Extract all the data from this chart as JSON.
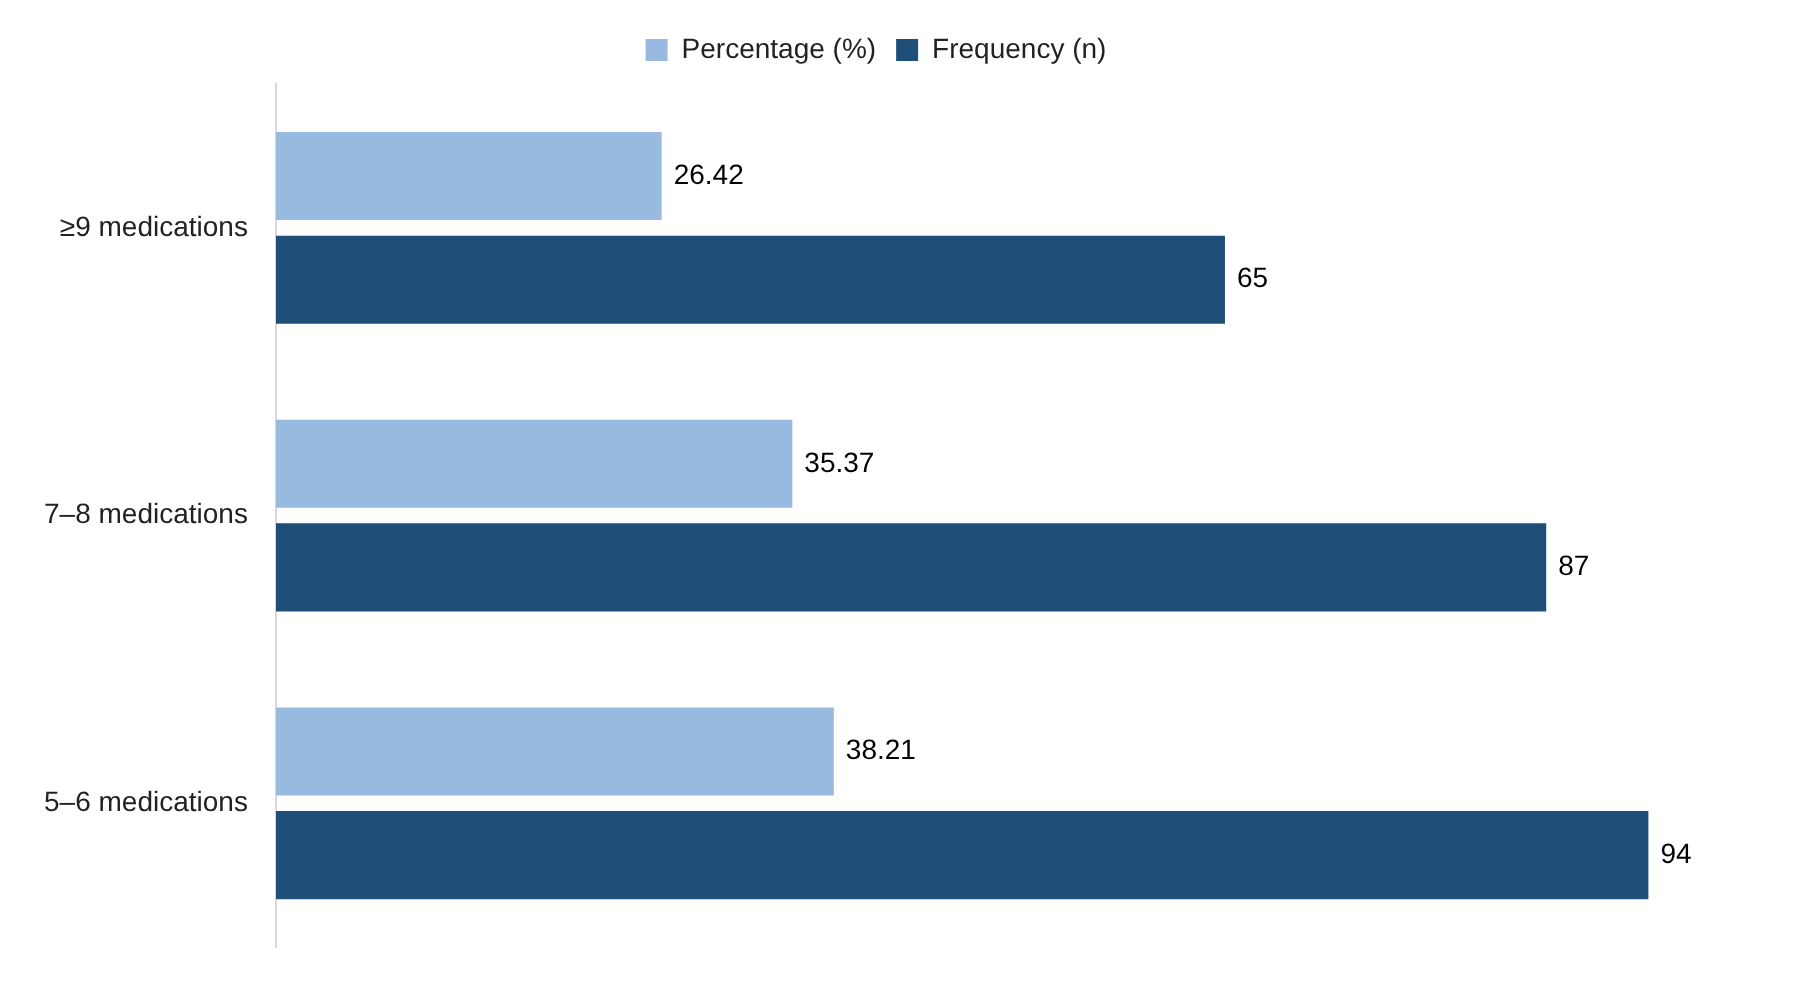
{
  "chart_data": {
    "type": "bar",
    "orientation": "horizontal",
    "categories": [
      "≥9 medications",
      "7–8 medications",
      "5–6 medications"
    ],
    "series": [
      {
        "name": "Percentage (%)",
        "color": "#99bae0",
        "values": [
          26.42,
          35.37,
          38.21
        ]
      },
      {
        "name": "Frequency (n)",
        "color": "#1f4e79",
        "values": [
          65,
          87,
          94
        ]
      }
    ],
    "data_labels": true,
    "legend": "top",
    "grid": false,
    "tick_labels": "y"
  }
}
